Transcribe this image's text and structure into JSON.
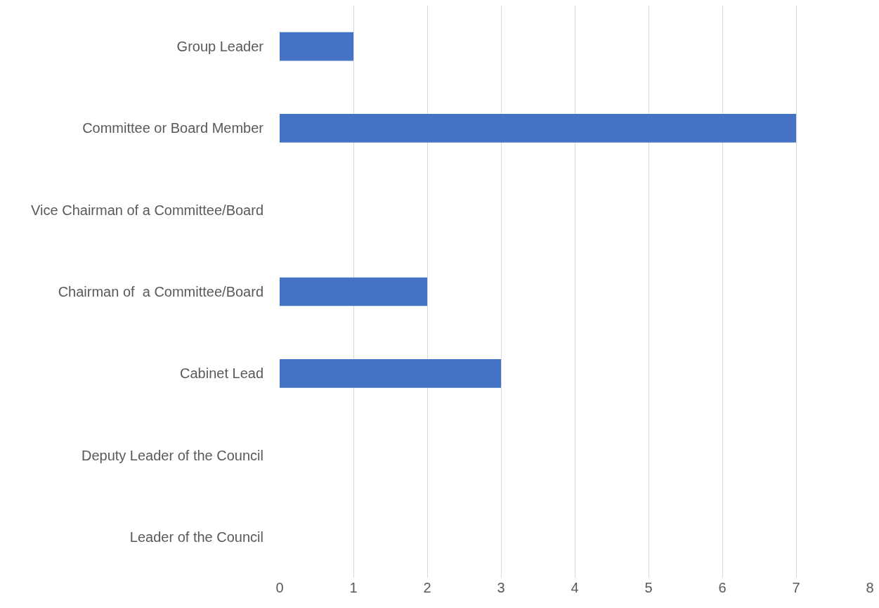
{
  "chart_data": {
    "type": "bar",
    "orientation": "horizontal",
    "categories": [
      "Group Leader",
      "Committee or Board Member",
      "Vice Chairman of a Committee/Board",
      "Chairman of  a Committee/Board",
      "Cabinet Lead",
      "Deputy Leader of the Council",
      "Leader of the Council"
    ],
    "values": [
      1,
      7,
      0,
      2,
      3,
      0,
      0
    ],
    "color": "#4472c4",
    "xlim": [
      0,
      8
    ],
    "xticks": [
      0,
      1,
      2,
      3,
      4,
      5,
      6,
      7,
      8
    ],
    "grid": "x",
    "legend": false
  }
}
